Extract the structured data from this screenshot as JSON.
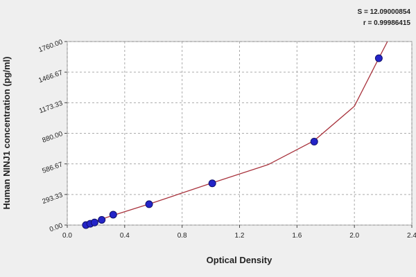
{
  "chart_data": {
    "type": "scatter",
    "x_label": "Optical Density",
    "y_label": "Human NINJ1 concentration (pg/ml)",
    "annotations": [
      "S = 12.09000854",
      "r = 0.99986415"
    ],
    "x": [
      0.13,
      0.16,
      0.19,
      0.24,
      0.32,
      0.57,
      1.01,
      1.72,
      2.17
    ],
    "series": [
      {
        "color": "#2424c8",
        "values": [
          0,
          12.5,
          25,
          50,
          100,
          200,
          400,
          800,
          1600
        ]
      }
    ],
    "fit": {
      "color": "#a8323c",
      "x": [
        0.12,
        0.3,
        0.6,
        1.0,
        1.4,
        1.72,
        2.0,
        2.17,
        2.23
      ],
      "values": [
        0,
        85,
        215,
        400,
        580,
        810,
        1140,
        1600,
        1760
      ]
    },
    "xlim": [
      0,
      2.4
    ],
    "ylim": [
      0,
      1760
    ],
    "xticks": [
      {
        "value": 0,
        "label": "0.0"
      },
      0.4,
      0.8,
      1.2,
      1.6,
      {
        "value": 2,
        "label": "2.0"
      },
      2.4
    ],
    "yticks": [
      {
        "value": 0,
        "label": "0.00"
      },
      {
        "value": 293.33,
        "label": "293.33"
      },
      {
        "value": 586.67,
        "label": "586.67"
      },
      {
        "value": 880,
        "label": "880.00"
      },
      {
        "value": 1173.33,
        "label": "1173.33"
      },
      {
        "value": 1466.67,
        "label": "1466.67"
      },
      {
        "value": 1760,
        "label": "1760.00"
      }
    ],
    "grid": true
  }
}
